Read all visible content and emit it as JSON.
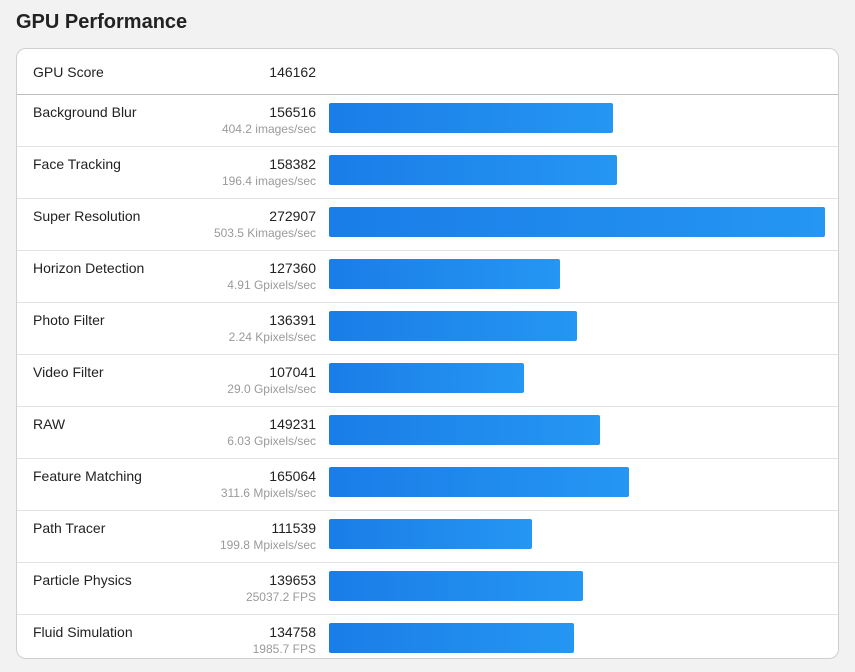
{
  "header": {
    "title": "GPU Performance"
  },
  "summary": {
    "label": "GPU Score",
    "value": "146162"
  },
  "colors": {
    "bar_start": "#1a7de8",
    "bar_end": "#2596f2"
  },
  "chart_data": {
    "type": "bar",
    "orientation": "horizontal",
    "xlim": [
      0,
      272907
    ],
    "grid": false,
    "categories": [
      "Background Blur",
      "Face Tracking",
      "Super Resolution",
      "Horizon Detection",
      "Photo Filter",
      "Video Filter",
      "RAW",
      "Feature Matching",
      "Path Tracer",
      "Particle Physics",
      "Fluid Simulation"
    ],
    "values": [
      156516,
      158382,
      272907,
      127360,
      136391,
      107041,
      149231,
      165064,
      111539,
      139653,
      134758
    ],
    "rows": [
      {
        "label": "Background Blur",
        "score": "156516",
        "rate": "404.2 images/sec",
        "value": 156516
      },
      {
        "label": "Face Tracking",
        "score": "158382",
        "rate": "196.4 images/sec",
        "value": 158382
      },
      {
        "label": "Super Resolution",
        "score": "272907",
        "rate": "503.5 Kimages/sec",
        "value": 272907
      },
      {
        "label": "Horizon Detection",
        "score": "127360",
        "rate": "4.91 Gpixels/sec",
        "value": 127360
      },
      {
        "label": "Photo Filter",
        "score": "136391",
        "rate": "2.24 Kpixels/sec",
        "value": 136391
      },
      {
        "label": "Video Filter",
        "score": "107041",
        "rate": "29.0 Gpixels/sec",
        "value": 107041
      },
      {
        "label": "RAW",
        "score": "149231",
        "rate": "6.03 Gpixels/sec",
        "value": 149231
      },
      {
        "label": "Feature Matching",
        "score": "165064",
        "rate": "311.6 Mpixels/sec",
        "value": 165064
      },
      {
        "label": "Path Tracer",
        "score": "111539",
        "rate": "199.8 Mpixels/sec",
        "value": 111539
      },
      {
        "label": "Particle Physics",
        "score": "139653",
        "rate": "25037.2 FPS",
        "value": 139653
      },
      {
        "label": "Fluid Simulation",
        "score": "134758",
        "rate": "1985.7 FPS",
        "value": 134758
      }
    ]
  }
}
